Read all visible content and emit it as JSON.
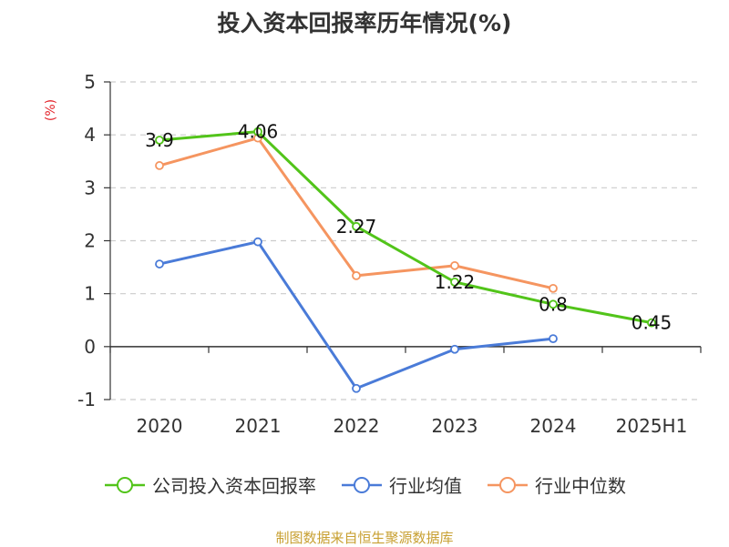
{
  "chart_data": {
    "type": "line",
    "title": "投入资本回报率历年情况(%)",
    "ylabel": "(%)",
    "categories": [
      "2020",
      "2021",
      "2022",
      "2023",
      "2024",
      "2025H1"
    ],
    "ylim": [
      -1,
      5
    ],
    "yticks": [
      "5",
      "4",
      "3",
      "2",
      "1",
      "0",
      "-1"
    ],
    "grid": true,
    "legend_position": "bottom",
    "series": [
      {
        "name": "公司投入资本回报率",
        "color": "#52c41a",
        "values": [
          3.9,
          4.06,
          2.27,
          1.22,
          0.8,
          0.45
        ],
        "labels": [
          "3.9",
          "4.06",
          "2.27",
          "1.22",
          "0.8",
          "0.45"
        ]
      },
      {
        "name": "行业均值",
        "color": "#4a7bd8",
        "values": [
          1.56,
          1.98,
          -0.79,
          -0.05,
          0.15,
          null
        ]
      },
      {
        "name": "行业中位数",
        "color": "#f59560",
        "values": [
          3.42,
          3.94,
          1.34,
          1.53,
          1.1,
          null
        ]
      }
    ]
  },
  "source": "制图数据来自恒生聚源数据库"
}
